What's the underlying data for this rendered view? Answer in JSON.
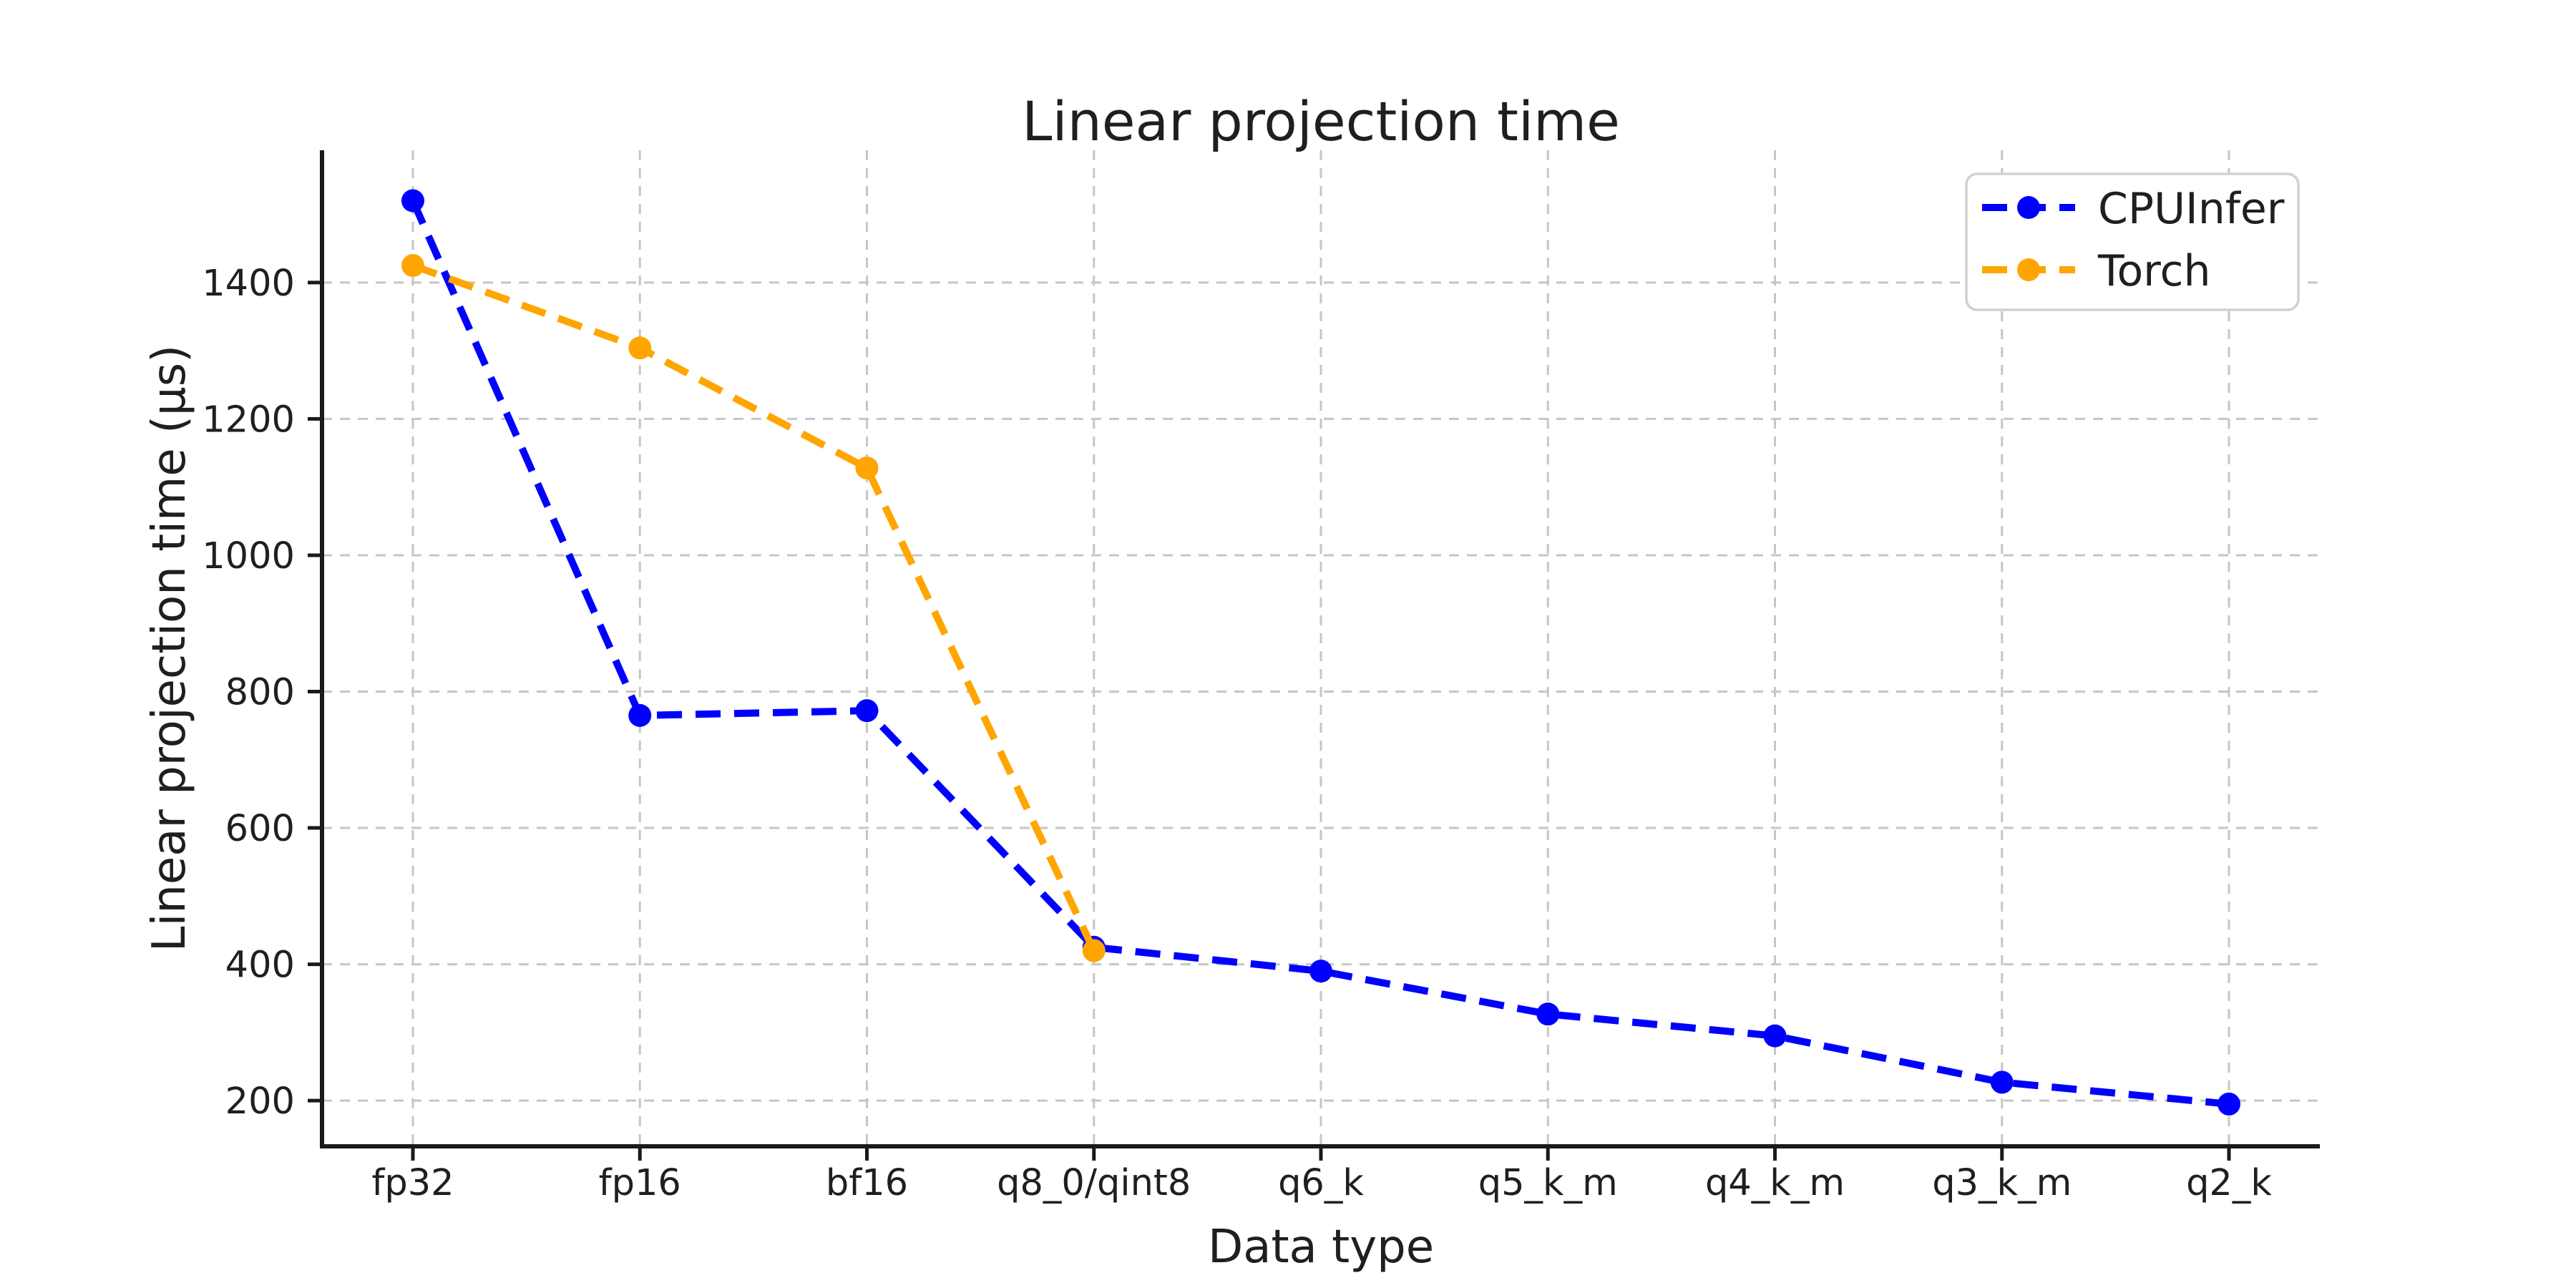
{
  "title": "Linear projection time",
  "x_axis": {
    "label": "Data type",
    "categories": [
      "fp32",
      "fp16",
      "bf16",
      "q8_0/qint8",
      "q6_k",
      "q5_k_m",
      "q4_k_m",
      "q3_k_m",
      "q2_k"
    ]
  },
  "y_axis": {
    "label": "Linear projection time (μs)",
    "ticks": [
      200,
      400,
      600,
      800,
      1000,
      1200,
      1400
    ],
    "range": [
      133,
      1594
    ]
  },
  "legend": {
    "items": [
      {
        "label": "CPUInfer",
        "color": "#0000ff"
      },
      {
        "label": "Torch",
        "color": "#ffa500"
      }
    ]
  },
  "chart_data": {
    "type": "line",
    "title": "Linear projection time",
    "xlabel": "Data type",
    "ylabel": "Linear projection time (μs)",
    "categories": [
      "fp32",
      "fp16",
      "bf16",
      "q8_0/qint8",
      "q6_k",
      "q5_k_m",
      "q4_k_m",
      "q3_k_m",
      "q2_k"
    ],
    "series": [
      {
        "name": "CPUInfer",
        "color": "#0000ff",
        "values": [
          1520,
          765,
          772,
          425,
          390,
          327,
          295,
          227,
          195
        ]
      },
      {
        "name": "Torch",
        "color": "#ffa500",
        "values": [
          1425,
          1304,
          1128,
          420
        ]
      }
    ],
    "ylim": [
      133,
      1594
    ],
    "yticks": [
      200,
      400,
      600,
      800,
      1000,
      1200,
      1400
    ],
    "grid": true,
    "grid_style": "dashed",
    "line_style": "dashed",
    "marker": "circle",
    "legend_position": "upper right",
    "colors": {
      "grid": "#c6c6c6",
      "spine": "#1a1a1a",
      "text": "#1f1f1f",
      "legend_border": "#d0d0d0",
      "background": "#ffffff"
    }
  }
}
